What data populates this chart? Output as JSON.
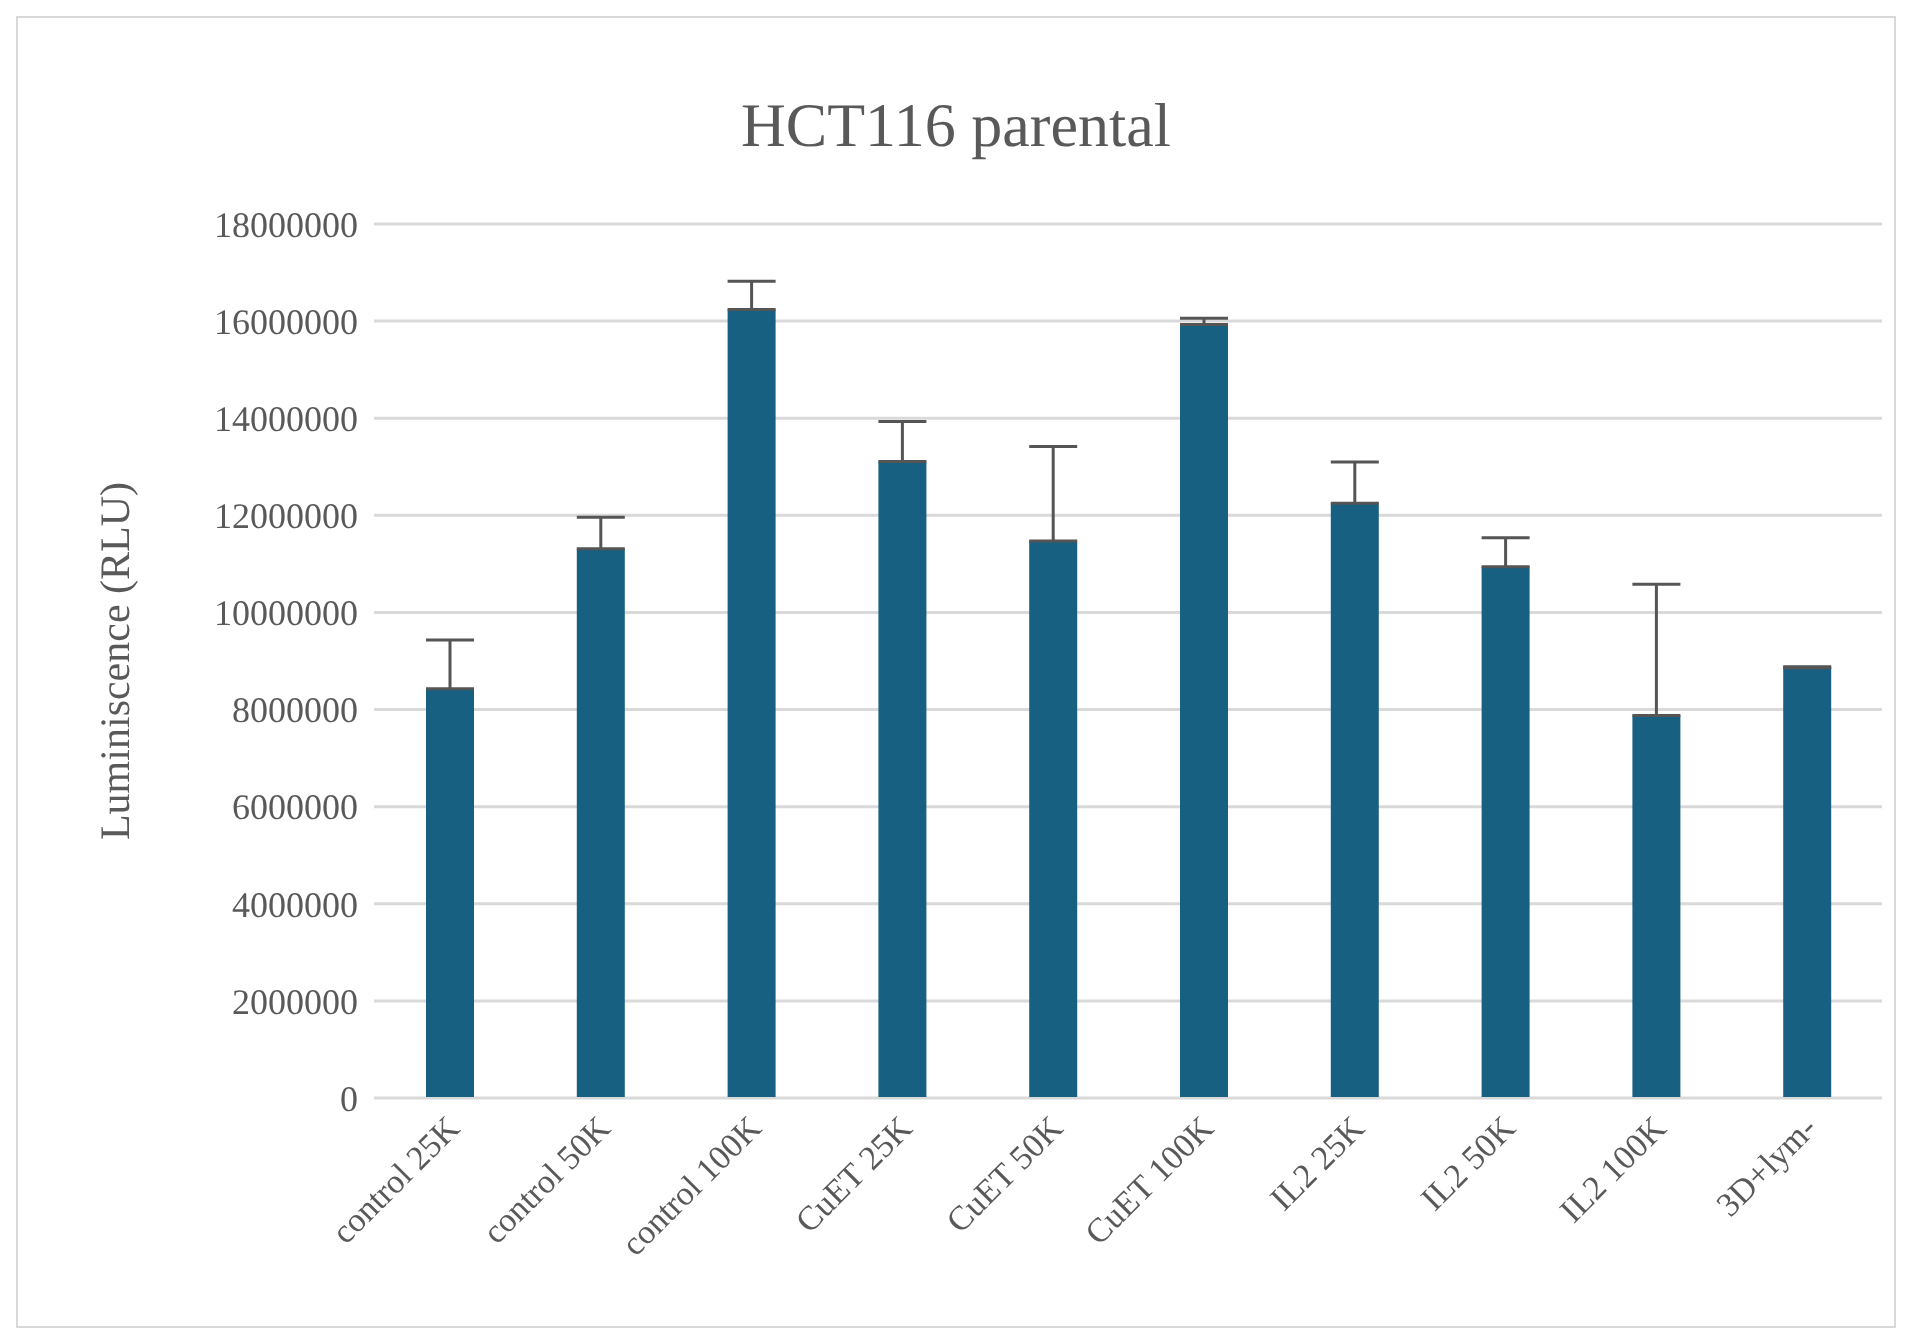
{
  "chart_data": {
    "type": "bar",
    "title": "HCT116 parental",
    "ylabel": "Luminiscence  (RLU)",
    "categories": [
      "control 25K",
      "control 50K",
      "control 100K",
      "CuET 25K",
      "CuET 50K",
      "CuET 100K",
      "IL2 25K",
      "IL2 50K",
      "IL2 100K",
      "3D+lym-"
    ],
    "values": [
      8430000,
      11310000,
      16240000,
      13110000,
      11470000,
      15930000,
      12250000,
      10940000,
      7880000,
      8860000
    ],
    "errors": [
      [
        8430000,
        9430000
      ],
      [
        11310000,
        11960000
      ],
      [
        16240000,
        16820000
      ],
      [
        13110000,
        13930000
      ],
      [
        11470000,
        13420000
      ],
      [
        15930000,
        16060000
      ],
      [
        12250000,
        13100000
      ],
      [
        10940000,
        11540000
      ],
      [
        7880000,
        10580000
      ],
      [
        8860000,
        8880000
      ]
    ],
    "color": "#176082",
    "ylim": [
      0,
      18000000
    ],
    "yticks": [
      0,
      2000000,
      4000000,
      6000000,
      8000000,
      10000000,
      12000000,
      14000000,
      16000000,
      18000000
    ],
    "grid": "y",
    "legend": false
  }
}
